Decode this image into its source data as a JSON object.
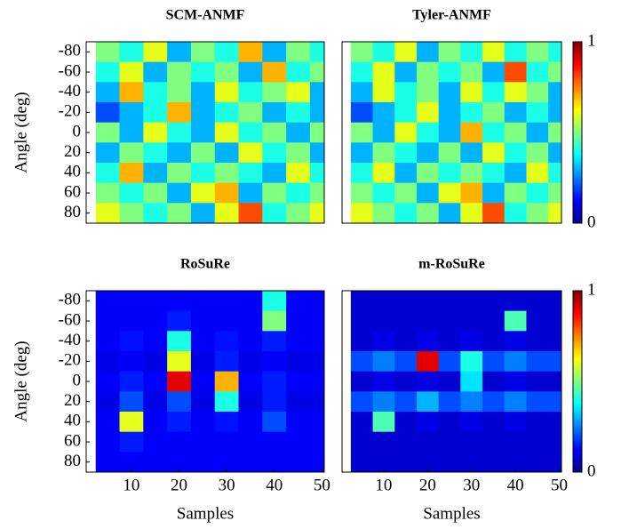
{
  "chart_data": [
    {
      "type": "heatmap",
      "title": "SCM-ANMF",
      "ylabel": "Angle (deg)",
      "x": [
        5,
        10,
        15,
        20,
        25,
        30,
        35,
        40,
        45,
        50
      ],
      "y": [
        -80,
        -60,
        -40,
        -20,
        0,
        20,
        40,
        60,
        80
      ],
      "z": [
        [
          0.5,
          0.4,
          0.6,
          0.3,
          0.5,
          0.4,
          0.7,
          0.3,
          0.5,
          0.4
        ],
        [
          0.4,
          0.6,
          0.3,
          0.5,
          0.4,
          0.5,
          0.3,
          0.7,
          0.4,
          0.5
        ],
        [
          0.3,
          0.7,
          0.4,
          0.5,
          0.3,
          0.6,
          0.4,
          0.5,
          0.6,
          0.3
        ],
        [
          0.2,
          0.3,
          0.4,
          0.7,
          0.3,
          0.4,
          0.5,
          0.3,
          0.4,
          0.3
        ],
        [
          0.5,
          0.3,
          0.6,
          0.4,
          0.3,
          0.6,
          0.4,
          0.5,
          0.3,
          0.5
        ],
        [
          0.3,
          0.5,
          0.4,
          0.3,
          0.5,
          0.3,
          0.6,
          0.4,
          0.5,
          0.3
        ],
        [
          0.4,
          0.7,
          0.3,
          0.5,
          0.4,
          0.5,
          0.4,
          0.3,
          0.6,
          0.4
        ],
        [
          0.5,
          0.4,
          0.5,
          0.3,
          0.6,
          0.7,
          0.3,
          0.5,
          0.4,
          0.5
        ],
        [
          0.6,
          0.5,
          0.4,
          0.5,
          0.3,
          0.6,
          0.8,
          0.4,
          0.5,
          0.6
        ]
      ],
      "xlim": [
        0.5,
        50.5
      ],
      "ylim": [
        -90,
        90
      ],
      "yticks": [
        -80,
        -60,
        -40,
        -20,
        0,
        20,
        40,
        60,
        80
      ]
    },
    {
      "type": "heatmap",
      "title": "Tyler-ANMF",
      "x": [
        5,
        10,
        15,
        20,
        25,
        30,
        35,
        40,
        45,
        50
      ],
      "y": [
        -80,
        -60,
        -40,
        -20,
        0,
        20,
        40,
        60,
        80
      ],
      "z": [
        [
          0.5,
          0.4,
          0.6,
          0.3,
          0.5,
          0.4,
          0.6,
          0.4,
          0.5,
          0.4
        ],
        [
          0.4,
          0.6,
          0.3,
          0.5,
          0.4,
          0.5,
          0.3,
          0.8,
          0.4,
          0.5
        ],
        [
          0.3,
          0.6,
          0.4,
          0.5,
          0.3,
          0.6,
          0.4,
          0.6,
          0.5,
          0.3
        ],
        [
          0.2,
          0.3,
          0.4,
          0.6,
          0.3,
          0.4,
          0.5,
          0.3,
          0.4,
          0.3
        ],
        [
          0.5,
          0.3,
          0.6,
          0.4,
          0.3,
          0.7,
          0.4,
          0.5,
          0.3,
          0.5
        ],
        [
          0.3,
          0.5,
          0.4,
          0.3,
          0.5,
          0.3,
          0.6,
          0.4,
          0.5,
          0.3
        ],
        [
          0.4,
          0.6,
          0.3,
          0.5,
          0.4,
          0.5,
          0.4,
          0.3,
          0.6,
          0.4
        ],
        [
          0.5,
          0.4,
          0.5,
          0.3,
          0.6,
          0.7,
          0.3,
          0.5,
          0.4,
          0.5
        ],
        [
          0.6,
          0.5,
          0.4,
          0.5,
          0.3,
          0.6,
          0.8,
          0.4,
          0.5,
          0.6
        ]
      ],
      "xlim": [
        0.5,
        50.5
      ],
      "ylim": [
        -90,
        90
      ],
      "colorbar": {
        "lim": [
          0,
          1
        ],
        "ticks": [
          0,
          1
        ]
      }
    },
    {
      "type": "heatmap",
      "title": "RoSuRe",
      "ylabel": "Angle (deg)",
      "xlabel": "Samples",
      "x": [
        5,
        10,
        15,
        20,
        25,
        30,
        35,
        40,
        45,
        50
      ],
      "y": [
        -80,
        -60,
        -40,
        -20,
        0,
        20,
        40,
        60,
        80
      ],
      "z": [
        [
          0.12,
          0.12,
          0.12,
          0.12,
          0.12,
          0.12,
          0.12,
          0.4,
          0.12,
          0.12
        ],
        [
          0.12,
          0.12,
          0.12,
          0.15,
          0.12,
          0.12,
          0.12,
          0.5,
          0.12,
          0.12
        ],
        [
          0.12,
          0.14,
          0.12,
          0.4,
          0.12,
          0.14,
          0.12,
          0.15,
          0.12,
          0.12
        ],
        [
          0.1,
          0.12,
          0.1,
          0.6,
          0.1,
          0.15,
          0.1,
          0.12,
          0.1,
          0.1
        ],
        [
          0.12,
          0.15,
          0.12,
          0.9,
          0.12,
          0.7,
          0.12,
          0.15,
          0.12,
          0.12
        ],
        [
          0.1,
          0.2,
          0.1,
          0.2,
          0.1,
          0.4,
          0.1,
          0.15,
          0.1,
          0.1
        ],
        [
          0.12,
          0.6,
          0.12,
          0.15,
          0.12,
          0.14,
          0.12,
          0.2,
          0.12,
          0.12
        ],
        [
          0.12,
          0.15,
          0.12,
          0.12,
          0.12,
          0.12,
          0.12,
          0.12,
          0.12,
          0.12
        ],
        [
          0.12,
          0.12,
          0.12,
          0.12,
          0.12,
          0.12,
          0.12,
          0.12,
          0.12,
          0.12
        ]
      ],
      "xlim": [
        0.5,
        50.5
      ],
      "ylim": [
        -90,
        90
      ],
      "yticks": [
        -80,
        -60,
        -40,
        -20,
        0,
        20,
        40,
        60,
        80
      ],
      "xticks": [
        10,
        20,
        30,
        40,
        50
      ]
    },
    {
      "type": "heatmap",
      "title": "m-RoSuRe",
      "xlabel": "Samples",
      "x": [
        5,
        10,
        15,
        20,
        25,
        30,
        35,
        40,
        45,
        50
      ],
      "y": [
        -80,
        -60,
        -40,
        -20,
        0,
        20,
        40,
        60,
        80
      ],
      "z": [
        [
          0.08,
          0.08,
          0.08,
          0.08,
          0.08,
          0.08,
          0.08,
          0.08,
          0.08,
          0.08
        ],
        [
          0.08,
          0.08,
          0.08,
          0.08,
          0.08,
          0.08,
          0.08,
          0.45,
          0.08,
          0.08
        ],
        [
          0.08,
          0.1,
          0.08,
          0.1,
          0.08,
          0.1,
          0.08,
          0.1,
          0.08,
          0.08
        ],
        [
          0.2,
          0.25,
          0.2,
          0.9,
          0.2,
          0.4,
          0.2,
          0.25,
          0.2,
          0.2
        ],
        [
          0.08,
          0.1,
          0.08,
          0.1,
          0.08,
          0.35,
          0.08,
          0.1,
          0.08,
          0.08
        ],
        [
          0.2,
          0.25,
          0.2,
          0.3,
          0.2,
          0.25,
          0.2,
          0.25,
          0.2,
          0.2
        ],
        [
          0.08,
          0.45,
          0.08,
          0.1,
          0.08,
          0.1,
          0.08,
          0.1,
          0.08,
          0.08
        ],
        [
          0.08,
          0.08,
          0.08,
          0.08,
          0.08,
          0.08,
          0.08,
          0.08,
          0.08,
          0.08
        ],
        [
          0.08,
          0.08,
          0.08,
          0.08,
          0.08,
          0.08,
          0.08,
          0.08,
          0.08,
          0.08
        ]
      ],
      "xlim": [
        0.5,
        50.5
      ],
      "ylim": [
        -90,
        90
      ],
      "xticks": [
        10,
        20,
        30,
        40,
        50
      ],
      "colorbar": {
        "lim": [
          0,
          1
        ],
        "ticks": [
          0,
          1
        ]
      }
    }
  ]
}
